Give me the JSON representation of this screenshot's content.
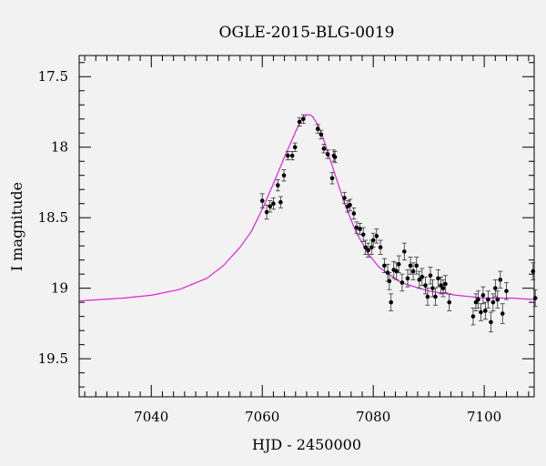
{
  "chart_data": {
    "type": "scatter",
    "title": "OGLE-2015-BLG-0019",
    "xlabel": "HJD - 2450000",
    "ylabel": "I magnitude",
    "xlim": [
      7027,
      7109
    ],
    "ylim": [
      17.35,
      19.77
    ],
    "y_inverted": true,
    "x_ticks": [
      7040,
      7060,
      7080,
      7100
    ],
    "x_tick_labels": [
      "7040",
      "7060",
      "7080",
      "7100"
    ],
    "y_ticks": [
      17.5,
      18,
      18.5,
      19,
      19.5
    ],
    "y_tick_labels": [
      "17.5",
      "18",
      "18.5",
      "19",
      "19.5"
    ],
    "grid": false,
    "model_color": "#e020e0",
    "point_color": "#000000",
    "model": {
      "x": [
        7027,
        7035,
        7040,
        7045,
        7050,
        7053,
        7056,
        7058,
        7060,
        7062,
        7064,
        7066,
        7067,
        7068,
        7068.5,
        7069,
        7070,
        7071,
        7072,
        7073,
        7074,
        7075,
        7077,
        7079,
        7081,
        7085,
        7090,
        7095,
        7100,
        7105,
        7109
      ],
      "y": [
        19.09,
        19.07,
        19.05,
        19.01,
        18.93,
        18.84,
        18.71,
        18.6,
        18.44,
        18.26,
        18.07,
        17.89,
        17.81,
        17.77,
        17.77,
        17.78,
        17.84,
        17.94,
        18.06,
        18.18,
        18.3,
        18.42,
        18.61,
        18.75,
        18.85,
        18.96,
        19.02,
        19.05,
        19.07,
        19.07,
        19.08
      ]
    },
    "points": {
      "x": [
        7060.0,
        7060.8,
        7061.4,
        7062.0,
        7062.8,
        7063.3,
        7063.9,
        7064.6,
        7065.4,
        7065.9,
        7066.7,
        7067.4,
        7070.0,
        7070.6,
        7071.1,
        7071.8,
        7072.6,
        7072.9,
        7073.1,
        7074.8,
        7075.4,
        7075.8,
        7076.5,
        7077.0,
        7077.6,
        7078.2,
        7078.6,
        7079.1,
        7079.7,
        7080.0,
        7080.6,
        7081.3,
        7082.0,
        7082.6,
        7082.9,
        7083.2,
        7083.7,
        7084.2,
        7084.6,
        7085.2,
        7085.6,
        7086.2,
        7086.7,
        7087.2,
        7087.8,
        7088.3,
        7088.8,
        7089.4,
        7089.8,
        7090.3,
        7090.7,
        7091.2,
        7091.7,
        7092.2,
        7092.6,
        7093.0,
        7093.7,
        7098.0,
        7098.5,
        7098.9,
        7099.4,
        7099.8,
        7100.2,
        7100.7,
        7101.2,
        7101.6,
        7102.0,
        7102.4,
        7102.9,
        7103.3,
        7104.0,
        7108.8,
        7109.2
      ],
      "y": [
        18.38,
        18.46,
        18.42,
        18.4,
        18.27,
        18.39,
        18.2,
        18.06,
        18.06,
        18.0,
        17.82,
        17.8,
        17.87,
        17.91,
        18.01,
        18.05,
        18.22,
        18.06,
        18.07,
        18.36,
        18.42,
        18.41,
        18.47,
        18.57,
        18.58,
        18.62,
        18.71,
        18.73,
        18.71,
        18.66,
        18.63,
        18.71,
        18.84,
        18.89,
        18.95,
        19.1,
        18.87,
        18.88,
        18.83,
        18.96,
        18.74,
        18.93,
        18.84,
        18.88,
        18.84,
        18.94,
        18.92,
        18.98,
        19.06,
        18.91,
        19.0,
        19.06,
        18.93,
        18.98,
        19.0,
        18.97,
        19.1,
        19.2,
        19.1,
        19.08,
        19.17,
        19.05,
        19.16,
        19.08,
        19.24,
        19.1,
        19.0,
        19.08,
        18.94,
        19.18,
        19.02,
        18.88,
        19.07
      ],
      "err": [
        0.05,
        0.05,
        0.04,
        0.04,
        0.04,
        0.04,
        0.04,
        0.03,
        0.03,
        0.03,
        0.03,
        0.03,
        0.03,
        0.03,
        0.03,
        0.03,
        0.04,
        0.04,
        0.04,
        0.04,
        0.04,
        0.04,
        0.04,
        0.04,
        0.04,
        0.05,
        0.05,
        0.05,
        0.05,
        0.05,
        0.05,
        0.05,
        0.05,
        0.06,
        0.06,
        0.06,
        0.06,
        0.06,
        0.06,
        0.06,
        0.06,
        0.06,
        0.06,
        0.06,
        0.06,
        0.06,
        0.06,
        0.06,
        0.06,
        0.06,
        0.06,
        0.06,
        0.06,
        0.06,
        0.06,
        0.06,
        0.06,
        0.06,
        0.06,
        0.06,
        0.06,
        0.06,
        0.06,
        0.06,
        0.07,
        0.06,
        0.06,
        0.06,
        0.06,
        0.07,
        0.06,
        0.06,
        0.06
      ]
    }
  }
}
